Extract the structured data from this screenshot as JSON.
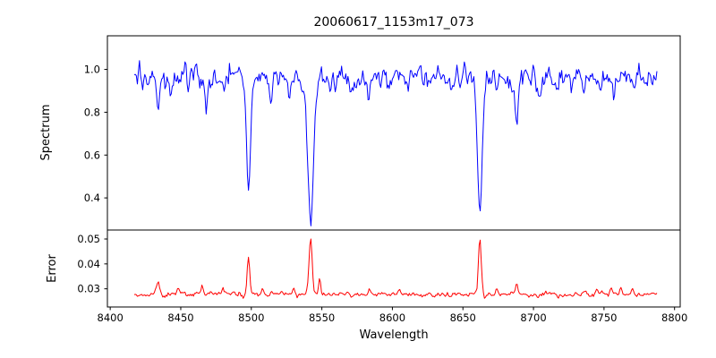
{
  "figure": {
    "background": "#ffffff",
    "axis_color": "#000000"
  },
  "chart_data": {
    "type": "line",
    "title": "20060617_1153m17_073",
    "xlabel": "Wavelength",
    "x_range": [
      8398,
      8804
    ],
    "x_data_range": [
      8417,
      8788
    ],
    "x_step": 0.75,
    "x_ticks": [
      8400,
      8450,
      8500,
      8550,
      8600,
      8650,
      8700,
      8750,
      8800
    ],
    "x_tick_labels": [
      "8400",
      "8450",
      "8500",
      "8550",
      "8600",
      "8650",
      "8700",
      "8750",
      "8800"
    ],
    "grid": false,
    "legend": "none",
    "noise_seed": 20060617,
    "subplots": [
      {
        "name": "spectrum",
        "ylabel": "Spectrum",
        "ylim": [
          0.25,
          1.157
        ],
        "y_ticks": [
          0.4,
          0.6,
          0.8,
          1.0
        ],
        "y_tick_labels": [
          "0.4",
          "0.6",
          "0.8",
          "1.0"
        ],
        "line_color": "#0000ff",
        "continuum": 0.96,
        "noise_sigma": 0.026,
        "noise_corr": 0.45,
        "absorption_lines": [
          {
            "center": 8498.0,
            "depth": 0.55,
            "sigma": 1.4
          },
          {
            "center": 8542.0,
            "depth": 0.71,
            "sigma": 2.0
          },
          {
            "center": 8662.0,
            "depth": 0.655,
            "sigma": 1.7
          },
          {
            "center": 8688.0,
            "depth": 0.25,
            "sigma": 1.1
          },
          {
            "center": 8423.0,
            "depth": 0.07,
            "sigma": 0.8
          },
          {
            "center": 8434.0,
            "depth": 0.16,
            "sigma": 1.0
          },
          {
            "center": 8443.0,
            "depth": 0.08,
            "sigma": 0.8
          },
          {
            "center": 8455.0,
            "depth": 0.07,
            "sigma": 0.8
          },
          {
            "center": 8468.0,
            "depth": 0.18,
            "sigma": 0.9
          },
          {
            "center": 8481.0,
            "depth": 0.08,
            "sigma": 0.8
          },
          {
            "center": 8514.0,
            "depth": 0.13,
            "sigma": 0.9
          },
          {
            "center": 8527.0,
            "depth": 0.09,
            "sigma": 0.8
          },
          {
            "center": 8560.0,
            "depth": 0.08,
            "sigma": 0.8
          },
          {
            "center": 8571.0,
            "depth": 0.06,
            "sigma": 0.8
          },
          {
            "center": 8583.0,
            "depth": 0.1,
            "sigma": 0.9
          },
          {
            "center": 8597.0,
            "depth": 0.06,
            "sigma": 0.8
          },
          {
            "center": 8611.0,
            "depth": 0.08,
            "sigma": 0.8
          },
          {
            "center": 8627.0,
            "depth": 0.06,
            "sigma": 0.8
          },
          {
            "center": 8641.0,
            "depth": 0.07,
            "sigma": 0.8
          },
          {
            "center": 8648.0,
            "depth": 0.09,
            "sigma": 0.8
          },
          {
            "center": 8674.0,
            "depth": 0.09,
            "sigma": 0.8
          },
          {
            "center": 8705.0,
            "depth": 0.05,
            "sigma": 0.8
          },
          {
            "center": 8717.0,
            "depth": 0.07,
            "sigma": 0.8
          },
          {
            "center": 8736.0,
            "depth": 0.08,
            "sigma": 0.8
          },
          {
            "center": 8747.0,
            "depth": 0.05,
            "sigma": 0.8
          },
          {
            "center": 8757.0,
            "depth": 0.07,
            "sigma": 0.8
          },
          {
            "center": 8772.0,
            "depth": 0.05,
            "sigma": 0.8
          }
        ],
        "key_points": [
          {
            "x": 8498,
            "y": 0.43
          },
          {
            "x": 8542,
            "y": 0.28
          },
          {
            "x": 8662,
            "y": 0.33
          },
          {
            "x": 8688,
            "y": 0.72
          }
        ]
      },
      {
        "name": "error",
        "ylabel": "Error",
        "ylim": [
          0.0227,
          0.0536
        ],
        "y_ticks": [
          0.03,
          0.04,
          0.05
        ],
        "y_tick_labels": [
          "0.03",
          "0.04",
          "0.05"
        ],
        "line_color": "#ff0000",
        "baseline": 0.0278,
        "noise_sigma": 0.00045,
        "noise_corr": 0.5,
        "spikes": [
          {
            "center": 8498.0,
            "height": 0.015,
            "sigma": 0.9
          },
          {
            "center": 8542.0,
            "height": 0.0235,
            "sigma": 1.1
          },
          {
            "center": 8662.0,
            "height": 0.0218,
            "sigma": 1.0
          },
          {
            "center": 8688.0,
            "height": 0.0045,
            "sigma": 0.9
          },
          {
            "center": 8434.0,
            "height": 0.004,
            "sigma": 1.2
          },
          {
            "center": 8448.0,
            "height": 0.0028,
            "sigma": 0.9
          },
          {
            "center": 8465.0,
            "height": 0.003,
            "sigma": 0.9
          },
          {
            "center": 8480.0,
            "height": 0.003,
            "sigma": 0.8
          },
          {
            "center": 8508.0,
            "height": 0.0025,
            "sigma": 0.8
          },
          {
            "center": 8530.0,
            "height": 0.003,
            "sigma": 0.7
          },
          {
            "center": 8548.5,
            "height": 0.0058,
            "sigma": 0.7
          },
          {
            "center": 8584.0,
            "height": 0.002,
            "sigma": 0.9
          },
          {
            "center": 8605.0,
            "height": 0.0015,
            "sigma": 0.8
          },
          {
            "center": 8674.0,
            "height": 0.003,
            "sigma": 0.8
          },
          {
            "center": 8745.0,
            "height": 0.0022,
            "sigma": 0.9
          },
          {
            "center": 8755.0,
            "height": 0.003,
            "sigma": 0.8
          },
          {
            "center": 8762.0,
            "height": 0.0028,
            "sigma": 0.7
          },
          {
            "center": 8770.0,
            "height": 0.0025,
            "sigma": 0.8
          }
        ],
        "key_points": [
          {
            "x": 8498,
            "y": 0.043
          },
          {
            "x": 8542,
            "y": 0.052
          },
          {
            "x": 8662,
            "y": 0.05
          },
          {
            "x": 8688,
            "y": 0.033
          }
        ]
      }
    ]
  }
}
